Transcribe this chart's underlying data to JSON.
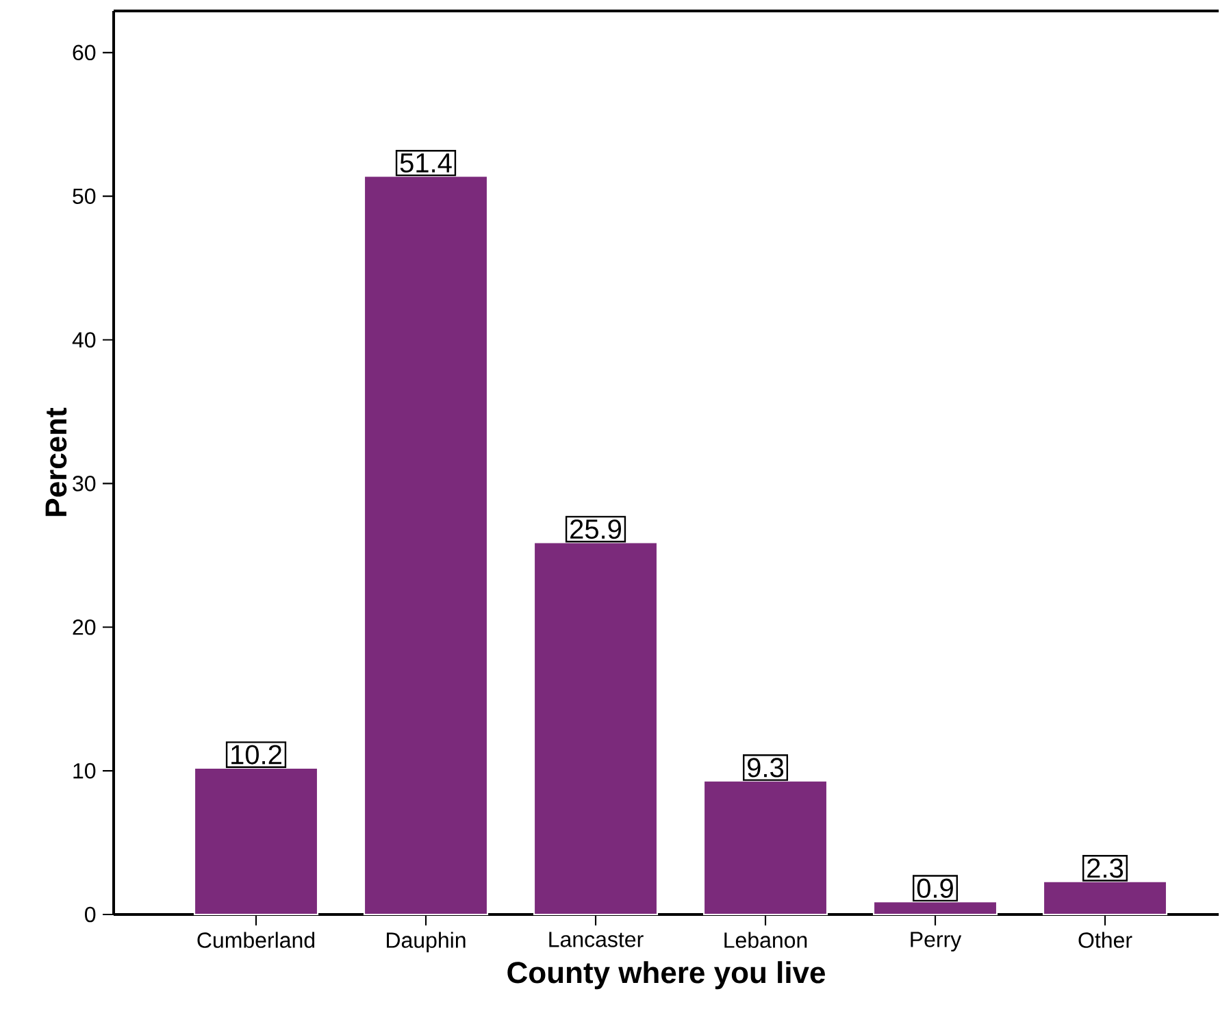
{
  "chart_data": {
    "type": "bar",
    "xlabel": "County where you live",
    "ylabel": "Percent",
    "categories": [
      "Cumberland",
      "Dauphin",
      "Lancaster",
      "Lebanon",
      "Perry",
      "Other"
    ],
    "values": [
      10.2,
      51.4,
      25.9,
      9.3,
      0.9,
      2.3
    ],
    "color": "#7b2a7b",
    "ylim": [
      0,
      62.9
    ],
    "yticks": [
      0,
      10,
      20,
      30,
      40,
      50,
      60
    ],
    "data_labels": true,
    "grid": false
  }
}
